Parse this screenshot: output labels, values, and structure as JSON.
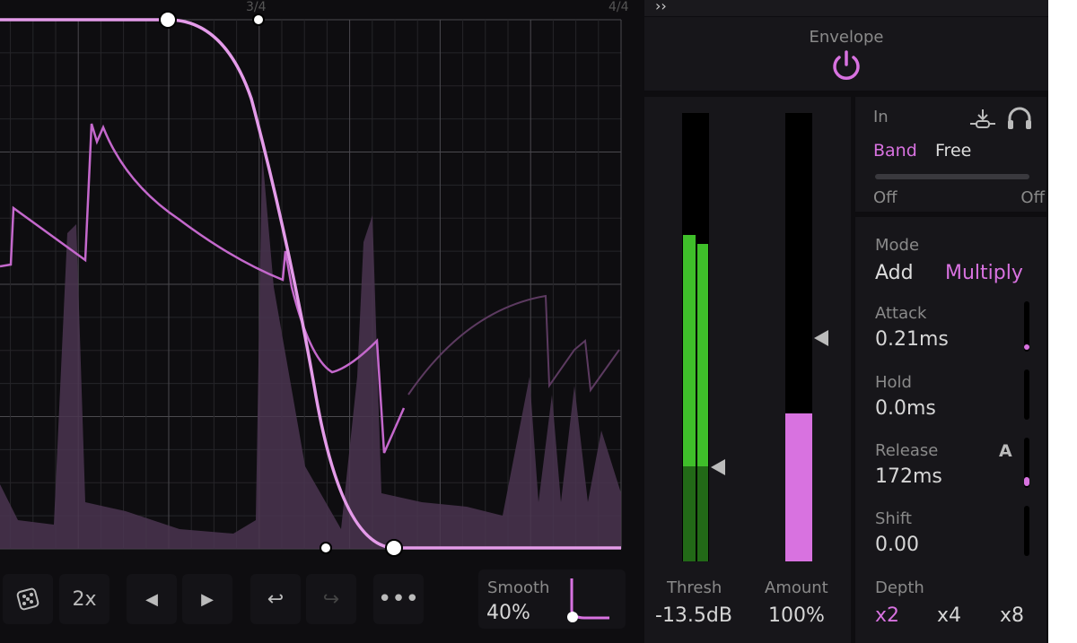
{
  "ruler": {
    "mark_3": "3/4",
    "mark_4": "4/4"
  },
  "toolbar": {
    "random_label": "dice",
    "double_label": "2x",
    "smooth_label": "Smooth",
    "smooth_value": "40%"
  },
  "header": {
    "expand": "››"
  },
  "envelope": {
    "title": "Envelope",
    "enabled": true
  },
  "meters": {
    "thresh_label": "Thresh",
    "thresh_value": "-13.5dB",
    "amount_label": "Amount",
    "amount_value": "100%",
    "amount_fill_percent": 33
  },
  "input": {
    "label": "In",
    "band": "Band",
    "free": "Free",
    "left_value": "Off",
    "right_value": "Off",
    "selected": "Band"
  },
  "params": {
    "mode_label": "Mode",
    "mode_add": "Add",
    "mode_multiply": "Multiply",
    "mode_selected": "Multiply",
    "attack_label": "Attack",
    "attack_value": "0.21ms",
    "hold_label": "Hold",
    "hold_value": "0.0ms",
    "release_label": "Release",
    "release_value": "172ms",
    "release_auto": "A",
    "shift_label": "Shift",
    "shift_value": "0.00",
    "depth_label": "Depth",
    "depth_options": [
      "x2",
      "x4",
      "x8"
    ],
    "depth_selected": "x2"
  },
  "colors": {
    "accent": "#d872e0",
    "meter_green": "#3fbf2a",
    "bg": "#0e0d10"
  }
}
